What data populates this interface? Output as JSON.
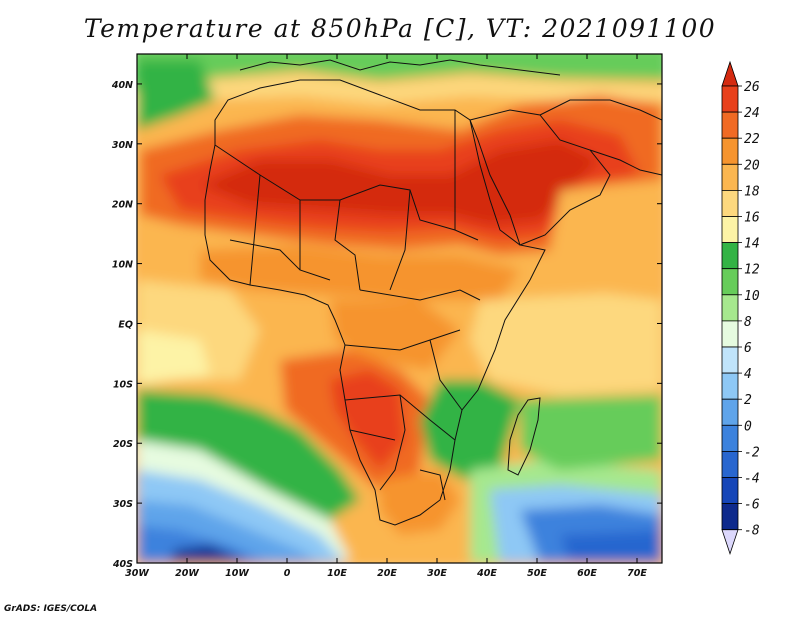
{
  "title": "Temperature at 850hPa [C], VT: 2021091100",
  "credit": "GrADS: IGES/COLA",
  "map": {
    "lon_ticks": [
      "30W",
      "20W",
      "10W",
      "0",
      "10E",
      "20E",
      "30E",
      "40E",
      "50E",
      "60E",
      "70E"
    ],
    "lat_ticks": [
      "40N",
      "30N",
      "20N",
      "10N",
      "EQ",
      "10S",
      "20S",
      "30S",
      "40S"
    ],
    "lon_range": [
      -30,
      75
    ],
    "lat_range": [
      -40,
      45
    ]
  },
  "colorbar": {
    "labels": [
      "26",
      "24",
      "22",
      "20",
      "18",
      "16",
      "14",
      "12",
      "10",
      "8",
      "6",
      "4",
      "2",
      "0",
      "-2",
      "-4",
      "-6",
      "-8"
    ],
    "colors": {
      "above": "#d42a10",
      "24_26": "#e8401b",
      "22_24": "#f06a24",
      "20_22": "#f6942e",
      "18_20": "#fbb650",
      "16_18": "#fdd87e",
      "14_16": "#fdf3a6",
      "12_14": "#33b345",
      "10_12": "#66cc5a",
      "8_10": "#a6e88e",
      "6_8": "#e6fbe0",
      "4_6": "#c0e4fb",
      "2_4": "#8ec8f5",
      "0_2": "#5fa4ea",
      "m2_0": "#3c82dd",
      "m4_m2": "#2866cf",
      "m6_m4": "#1646b8",
      "m8_m6": "#0e2a8c",
      "below": "#dcd8fc"
    }
  }
}
